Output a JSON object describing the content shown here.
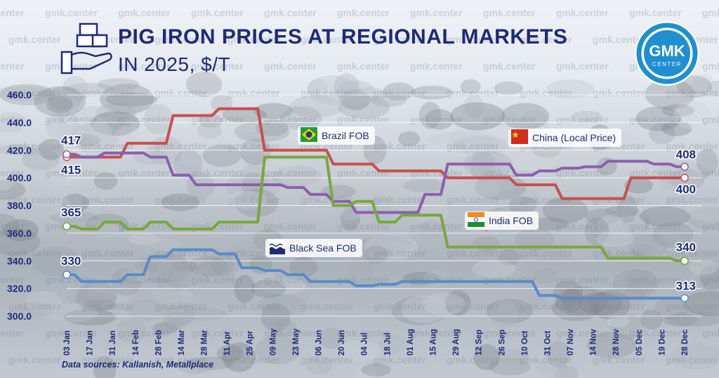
{
  "title_line1": "PIG IRON PRICES AT REGIONAL MARKETS",
  "title_line2": "IN 2025, $/T",
  "source": "Data sources: Kallanish, Metallplace",
  "watermark": "gmk.center",
  "logo": {
    "main": "GMK",
    "sub": "CENTER",
    "color": "#1e8fd0"
  },
  "tags": {
    "brazil": "Brazil FOB",
    "china": "China (Local Price)",
    "india": "India FOB",
    "blacksea": "Black Sea FOB"
  },
  "chart_data": {
    "type": "line",
    "ylim": [
      300,
      460
    ],
    "yticks": [
      "300.0",
      "320.0",
      "340.0",
      "360.0",
      "380.0",
      "400.0",
      "420.0",
      "440.0",
      "460.0"
    ],
    "x_labels": [
      "03 Jan",
      "17 Jan",
      "31 Jan",
      "14 Feb",
      "28 Feb",
      "14 Mar",
      "28 Mar",
      "11 Apr",
      "25 Apr",
      "09 May",
      "23 May",
      "06 Jun",
      "20 Jun",
      "04 Jul",
      "18 Jul",
      "01 Aug",
      "15 Aug",
      "29 Aug",
      "12 Sep",
      "26 Sep",
      "10 Oct",
      "31 Oct",
      "07 Nov",
      "14 Nov",
      "28 Nov",
      "05 Dec",
      "19 Dec",
      "28 Dec"
    ],
    "series": [
      {
        "name": "Brazil FOB",
        "color": "#c8504e",
        "values": [
          415,
          415,
          415,
          425,
          425,
          445,
          445,
          450,
          450,
          420,
          420,
          420,
          410,
          410,
          405,
          405,
          405,
          400,
          400,
          400,
          395,
          395,
          385,
          385,
          385,
          400,
          400,
          400
        ]
      },
      {
        "name": "China (Local Price)",
        "color": "#8b5fae",
        "values": [
          417,
          415,
          418,
          418,
          415,
          402,
          395,
          395,
          395,
          395,
          393,
          388,
          383,
          375,
          375,
          375,
          388,
          410,
          410,
          410,
          402,
          405,
          407,
          408,
          412,
          412,
          410,
          408
        ]
      },
      {
        "name": "India FOB",
        "color": "#78a83a",
        "values": [
          365,
          363,
          368,
          363,
          368,
          363,
          363,
          368,
          368,
          415,
          415,
          415,
          380,
          383,
          368,
          373,
          373,
          350,
          350,
          350,
          350,
          350,
          350,
          350,
          342,
          342,
          342,
          340
        ]
      },
      {
        "name": "Black Sea FOB",
        "color": "#5b8ac8",
        "values": [
          330,
          325,
          325,
          330,
          343,
          348,
          348,
          345,
          335,
          333,
          330,
          325,
          325,
          322,
          323,
          325,
          325,
          325,
          325,
          325,
          325,
          315,
          313,
          313,
          313,
          313,
          313,
          313
        ]
      }
    ],
    "start_labels": {
      "Brazil FOB": "415",
      "China (Local Price)": "417",
      "India FOB": "365",
      "Black Sea FOB": "330"
    },
    "end_labels": {
      "Brazil FOB": "400",
      "China (Local Price)": "408",
      "India FOB": "340",
      "Black Sea FOB": "313"
    }
  }
}
